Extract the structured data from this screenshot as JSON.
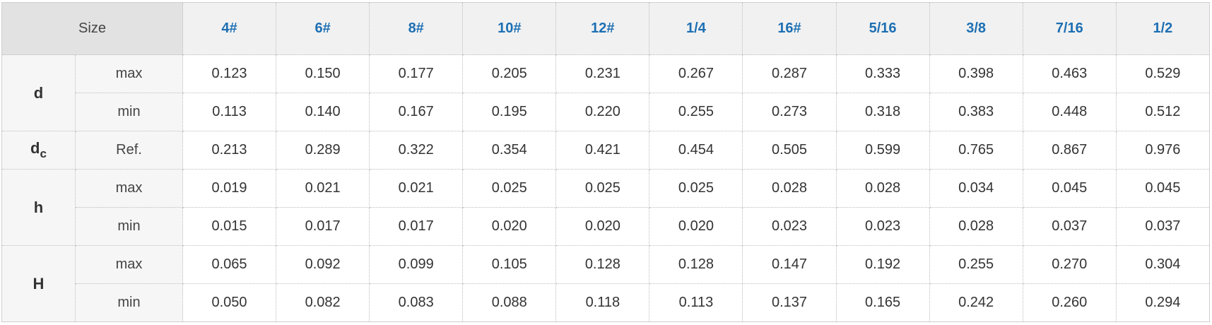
{
  "table": {
    "header": {
      "label": "Size",
      "sizes": [
        "4#",
        "6#",
        "8#",
        "10#",
        "12#",
        "1/4",
        "16#",
        "5/16",
        "3/8",
        "7/16",
        "1/2"
      ]
    },
    "groups": [
      {
        "symbol": "d",
        "rows": [
          {
            "label": "max",
            "values": [
              "0.123",
              "0.150",
              "0.177",
              "0.205",
              "0.231",
              "0.267",
              "0.287",
              "0.333",
              "0.398",
              "0.463",
              "0.529"
            ]
          },
          {
            "label": "min",
            "values": [
              "0.113",
              "0.140",
              "0.167",
              "0.195",
              "0.220",
              "0.255",
              "0.273",
              "0.318",
              "0.383",
              "0.448",
              "0.512"
            ]
          }
        ]
      },
      {
        "symbol": "d",
        "subscript": "c",
        "rows": [
          {
            "label": "Ref.",
            "values": [
              "0.213",
              "0.289",
              "0.322",
              "0.354",
              "0.421",
              "0.454",
              "0.505",
              "0.599",
              "0.765",
              "0.867",
              "0.976"
            ]
          }
        ]
      },
      {
        "symbol": "h",
        "rows": [
          {
            "label": "max",
            "values": [
              "0.019",
              "0.021",
              "0.021",
              "0.025",
              "0.025",
              "0.025",
              "0.028",
              "0.028",
              "0.034",
              "0.045",
              "0.045"
            ]
          },
          {
            "label": "min",
            "values": [
              "0.015",
              "0.017",
              "0.017",
              "0.020",
              "0.020",
              "0.020",
              "0.023",
              "0.023",
              "0.028",
              "0.037",
              "0.037"
            ]
          }
        ]
      },
      {
        "symbol": "H",
        "rows": [
          {
            "label": "max",
            "values": [
              "0.065",
              "0.092",
              "0.099",
              "0.105",
              "0.128",
              "0.128",
              "0.147",
              "0.192",
              "0.255",
              "0.270",
              "0.304"
            ]
          },
          {
            "label": "min",
            "values": [
              "0.050",
              "0.082",
              "0.083",
              "0.088",
              "0.118",
              "0.113",
              "0.137",
              "0.165",
              "0.242",
              "0.260",
              "0.294"
            ]
          }
        ]
      }
    ]
  }
}
